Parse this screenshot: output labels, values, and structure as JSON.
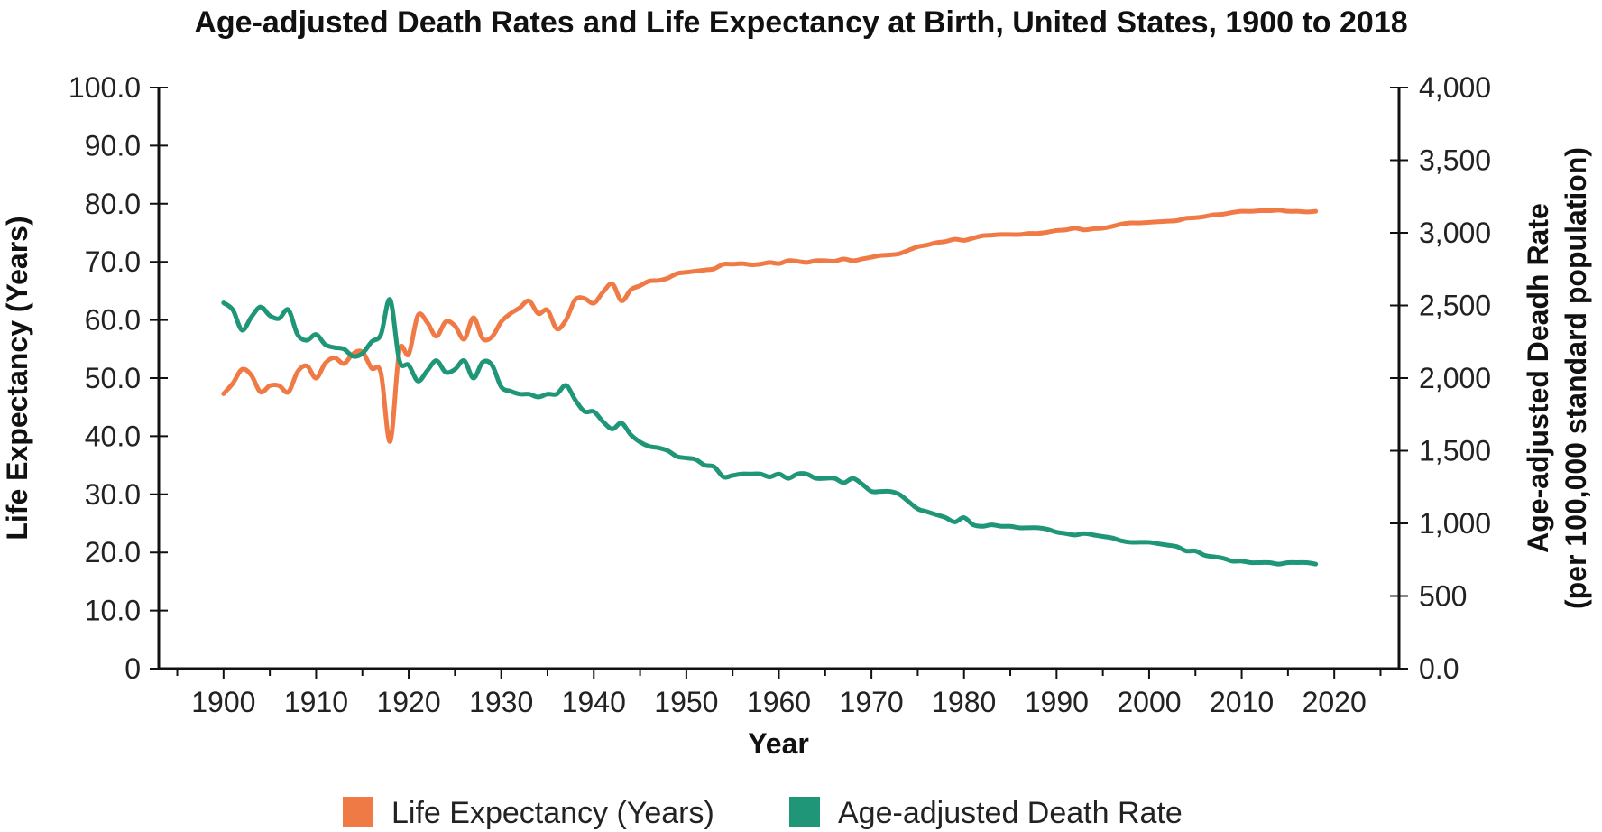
{
  "chart_data": {
    "type": "line",
    "title": "Age-adjusted Death Rates and Life Expectancy at Birth, United States, 1900 to 2018",
    "xlabel": "Year",
    "ylabel_left": "Life Expectancy (Years)",
    "ylabel_right_line1": "Age-adjusted Deadh Rate",
    "ylabel_right_line2": "(per 100,000 standard population)",
    "xlim": [
      1893,
      2027
    ],
    "ylim_left": [
      0,
      100
    ],
    "ylim_right": [
      0,
      4000
    ],
    "x_ticks": [
      1900,
      1910,
      1920,
      1930,
      1940,
      1950,
      1960,
      1970,
      1980,
      1990,
      2000,
      2010,
      2020
    ],
    "x_tick_labels": [
      "1900",
      "1910",
      "1920",
      "1930",
      "1940",
      "1950",
      "1960",
      "1970",
      "1980",
      "1990",
      "2000",
      "2010",
      "2020"
    ],
    "y_left_ticks": [
      0,
      10,
      20,
      30,
      40,
      50,
      60,
      70,
      80,
      90,
      100
    ],
    "y_left_tick_labels": [
      "0",
      "10.0",
      "20.0",
      "30.0",
      "40.0",
      "50.0",
      "60.0",
      "70.0",
      "80.0",
      "90.0",
      "100.0"
    ],
    "y_right_ticks": [
      0,
      500,
      1000,
      1500,
      2000,
      2500,
      3000,
      3500,
      4000
    ],
    "y_right_tick_labels": [
      "0.0",
      "500",
      "1,000",
      "1,500",
      "2,000",
      "2,500",
      "3,000",
      "3,500",
      "4,000"
    ],
    "grid": false,
    "legend_position": "bottom-center",
    "colors": {
      "life": "#f07a45",
      "death": "#1f9677",
      "axis": "#111111"
    },
    "series": [
      {
        "name": "Life Expectancy (Years)",
        "axis": "left",
        "x": [
          1900,
          1901,
          1902,
          1903,
          1904,
          1905,
          1906,
          1907,
          1908,
          1909,
          1910,
          1911,
          1912,
          1913,
          1914,
          1915,
          1916,
          1917,
          1918,
          1919,
          1920,
          1921,
          1922,
          1923,
          1924,
          1925,
          1926,
          1927,
          1928,
          1929,
          1930,
          1931,
          1932,
          1933,
          1934,
          1935,
          1936,
          1937,
          1938,
          1939,
          1940,
          1941,
          1942,
          1943,
          1944,
          1945,
          1946,
          1947,
          1948,
          1949,
          1950,
          1951,
          1952,
          1953,
          1954,
          1955,
          1956,
          1957,
          1958,
          1959,
          1960,
          1961,
          1962,
          1963,
          1964,
          1965,
          1966,
          1967,
          1968,
          1969,
          1970,
          1971,
          1972,
          1973,
          1974,
          1975,
          1976,
          1977,
          1978,
          1979,
          1980,
          1981,
          1982,
          1983,
          1984,
          1985,
          1986,
          1987,
          1988,
          1989,
          1990,
          1991,
          1992,
          1993,
          1994,
          1995,
          1996,
          1997,
          1998,
          1999,
          2000,
          2001,
          2002,
          2003,
          2004,
          2005,
          2006,
          2007,
          2008,
          2009,
          2010,
          2011,
          2012,
          2013,
          2014,
          2015,
          2016,
          2017,
          2018
        ],
        "values": [
          47.3,
          49.1,
          51.5,
          50.5,
          47.6,
          48.7,
          48.7,
          47.6,
          51.1,
          52.1,
          50.0,
          52.6,
          53.5,
          52.5,
          54.2,
          54.5,
          51.7,
          50.9,
          39.1,
          54.7,
          54.1,
          60.8,
          59.6,
          57.2,
          59.7,
          59.0,
          56.7,
          60.4,
          56.8,
          57.1,
          59.7,
          61.1,
          62.1,
          63.3,
          61.1,
          61.7,
          58.5,
          60.0,
          63.5,
          63.7,
          62.9,
          64.8,
          66.2,
          63.3,
          65.2,
          65.9,
          66.7,
          66.8,
          67.2,
          68.0,
          68.2,
          68.4,
          68.6,
          68.8,
          69.6,
          69.6,
          69.7,
          69.5,
          69.6,
          69.9,
          69.7,
          70.2,
          70.1,
          69.9,
          70.2,
          70.2,
          70.1,
          70.5,
          70.2,
          70.5,
          70.8,
          71.1,
          71.2,
          71.4,
          72.0,
          72.6,
          72.9,
          73.3,
          73.5,
          73.9,
          73.7,
          74.1,
          74.5,
          74.6,
          74.7,
          74.7,
          74.7,
          74.9,
          74.9,
          75.1,
          75.4,
          75.5,
          75.8,
          75.5,
          75.7,
          75.8,
          76.1,
          76.5,
          76.7,
          76.7,
          76.8,
          76.9,
          77.0,
          77.1,
          77.5,
          77.6,
          77.8,
          78.1,
          78.2,
          78.5,
          78.7,
          78.7,
          78.8,
          78.8,
          78.9,
          78.7,
          78.7,
          78.6,
          78.7
        ]
      },
      {
        "name": "Age-adjusted Death Rate",
        "axis": "right",
        "x": [
          1900,
          1901,
          1902,
          1903,
          1904,
          1905,
          1906,
          1907,
          1908,
          1909,
          1910,
          1911,
          1912,
          1913,
          1914,
          1915,
          1916,
          1917,
          1918,
          1919,
          1920,
          1921,
          1922,
          1923,
          1924,
          1925,
          1926,
          1927,
          1928,
          1929,
          1930,
          1931,
          1932,
          1933,
          1934,
          1935,
          1936,
          1937,
          1938,
          1939,
          1940,
          1941,
          1942,
          1943,
          1944,
          1945,
          1946,
          1947,
          1948,
          1949,
          1950,
          1951,
          1952,
          1953,
          1954,
          1955,
          1956,
          1957,
          1958,
          1959,
          1960,
          1961,
          1962,
          1963,
          1964,
          1965,
          1966,
          1967,
          1968,
          1969,
          1970,
          1971,
          1972,
          1973,
          1974,
          1975,
          1976,
          1977,
          1978,
          1979,
          1980,
          1981,
          1982,
          1983,
          1984,
          1985,
          1986,
          1987,
          1988,
          1989,
          1990,
          1991,
          1992,
          1993,
          1994,
          1995,
          1996,
          1997,
          1998,
          1999,
          2000,
          2001,
          2002,
          2003,
          2004,
          2005,
          2006,
          2007,
          2008,
          2009,
          2010,
          2011,
          2012,
          2013,
          2014,
          2015,
          2016,
          2017,
          2018
        ],
        "values": [
          2518,
          2470,
          2330,
          2420,
          2490,
          2430,
          2410,
          2470,
          2300,
          2260,
          2300,
          2230,
          2210,
          2200,
          2150,
          2170,
          2250,
          2300,
          2540,
          2120,
          2090,
          1980,
          2050,
          2120,
          2040,
          2060,
          2120,
          2000,
          2110,
          2090,
          1940,
          1910,
          1890,
          1890,
          1870,
          1890,
          1890,
          1950,
          1850,
          1770,
          1770,
          1700,
          1650,
          1690,
          1610,
          1560,
          1530,
          1520,
          1500,
          1460,
          1450,
          1440,
          1400,
          1390,
          1320,
          1330,
          1340,
          1340,
          1340,
          1320,
          1340,
          1310,
          1340,
          1340,
          1310,
          1310,
          1310,
          1280,
          1310,
          1270,
          1220,
          1220,
          1220,
          1200,
          1150,
          1100,
          1080,
          1060,
          1040,
          1010,
          1040,
          990,
          980,
          990,
          980,
          980,
          970,
          970,
          970,
          960,
          940,
          930,
          920,
          930,
          920,
          910,
          900,
          880,
          870,
          870,
          870,
          860,
          850,
          840,
          810,
          810,
          780,
          770,
          760,
          740,
          740,
          730,
          730,
          730,
          720,
          730,
          730,
          730,
          720
        ]
      }
    ]
  }
}
